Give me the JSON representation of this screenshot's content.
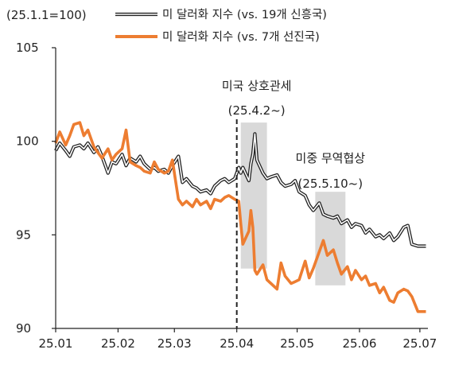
{
  "chart_data": {
    "type": "line",
    "ylabel": "(25.1.1=100)",
    "ylim": [
      90,
      105
    ],
    "y_ticks": [
      "90",
      "95",
      "100",
      "105"
    ],
    "xlim": [
      "2025-01-01",
      "2025-07-05"
    ],
    "x_tick_labels": [
      "25.01",
      "25.02",
      "25.03",
      "25.04",
      "25.05",
      "25.06",
      "25.07"
    ],
    "x_tick_dates": [
      "2025-01-01",
      "2025-02-01",
      "2025-03-01",
      "2025-04-01",
      "2025-05-01",
      "2025-06-01",
      "2025-07-01"
    ],
    "grid": false,
    "legend_position": "top-left",
    "series": [
      {
        "name": "미 달러화 지수 (vs. 19개 신흥국)",
        "style": "double",
        "color": "#222222",
        "x": [
          "2025-01-01",
          "2025-01-03",
          "2025-01-06",
          "2025-01-08",
          "2025-01-10",
          "2025-01-13",
          "2025-01-15",
          "2025-01-17",
          "2025-01-20",
          "2025-01-22",
          "2025-01-24",
          "2025-01-27",
          "2025-01-29",
          "2025-01-31",
          "2025-02-03",
          "2025-02-05",
          "2025-02-07",
          "2025-02-10",
          "2025-02-12",
          "2025-02-14",
          "2025-02-17",
          "2025-02-19",
          "2025-02-21",
          "2025-02-24",
          "2025-02-26",
          "2025-02-28",
          "2025-03-03",
          "2025-03-05",
          "2025-03-07",
          "2025-03-10",
          "2025-03-12",
          "2025-03-14",
          "2025-03-17",
          "2025-03-19",
          "2025-03-21",
          "2025-03-24",
          "2025-03-26",
          "2025-03-28",
          "2025-03-31",
          "2025-04-02",
          "2025-04-03",
          "2025-04-04",
          "2025-04-07",
          "2025-04-08",
          "2025-04-09",
          "2025-04-10",
          "2025-04-11",
          "2025-04-14",
          "2025-04-16",
          "2025-04-18",
          "2025-04-21",
          "2025-04-23",
          "2025-04-25",
          "2025-04-28",
          "2025-04-30",
          "2025-05-02",
          "2025-05-05",
          "2025-05-07",
          "2025-05-09",
          "2025-05-12",
          "2025-05-14",
          "2025-05-16",
          "2025-05-19",
          "2025-05-21",
          "2025-05-23",
          "2025-05-26",
          "2025-05-28",
          "2025-05-30",
          "2025-06-02",
          "2025-06-04",
          "2025-06-06",
          "2025-06-09",
          "2025-06-11",
          "2025-06-13",
          "2025-06-16",
          "2025-06-18",
          "2025-06-20",
          "2025-06-23",
          "2025-06-25",
          "2025-06-27",
          "2025-06-30",
          "2025-07-02",
          "2025-07-04"
        ],
        "values": [
          99.5,
          99.9,
          99.5,
          99.2,
          99.7,
          99.8,
          99.6,
          99.9,
          99.4,
          99.7,
          99.2,
          98.3,
          98.9,
          98.8,
          99.3,
          98.7,
          99.1,
          98.9,
          99.2,
          98.8,
          98.5,
          98.6,
          98.4,
          98.5,
          98.3,
          98.7,
          99.2,
          97.8,
          98.0,
          97.6,
          97.5,
          97.3,
          97.4,
          97.2,
          97.6,
          97.9,
          98.0,
          97.8,
          98.0,
          98.6,
          98.3,
          98.6,
          97.9,
          98.8,
          99.3,
          100.4,
          99.0,
          98.3,
          98.0,
          98.1,
          98.2,
          97.8,
          97.6,
          97.7,
          97.9,
          97.3,
          97.1,
          96.6,
          96.3,
          96.7,
          96.1,
          96.0,
          95.9,
          96.0,
          95.6,
          95.8,
          95.4,
          95.6,
          95.5,
          95.1,
          95.3,
          94.9,
          95.0,
          94.8,
          95.1,
          94.7,
          94.9,
          95.4,
          95.5,
          94.5,
          94.4,
          94.4,
          94.4
        ]
      },
      {
        "name": "미 달러화 지수 (vs. 7개 선진국)",
        "style": "solid",
        "color": "#ED7D31",
        "x": [
          "2025-01-01",
          "2025-01-03",
          "2025-01-06",
          "2025-01-08",
          "2025-01-10",
          "2025-01-13",
          "2025-01-15",
          "2025-01-17",
          "2025-01-20",
          "2025-01-22",
          "2025-01-24",
          "2025-01-27",
          "2025-01-29",
          "2025-01-31",
          "2025-02-03",
          "2025-02-05",
          "2025-02-07",
          "2025-02-10",
          "2025-02-12",
          "2025-02-14",
          "2025-02-17",
          "2025-02-19",
          "2025-02-21",
          "2025-02-24",
          "2025-02-26",
          "2025-02-28",
          "2025-03-03",
          "2025-03-05",
          "2025-03-07",
          "2025-03-10",
          "2025-03-12",
          "2025-03-14",
          "2025-03-17",
          "2025-03-19",
          "2025-03-21",
          "2025-03-24",
          "2025-03-26",
          "2025-03-28",
          "2025-03-31",
          "2025-04-02",
          "2025-04-03",
          "2025-04-04",
          "2025-04-07",
          "2025-04-08",
          "2025-04-09",
          "2025-04-10",
          "2025-04-11",
          "2025-04-14",
          "2025-04-16",
          "2025-04-18",
          "2025-04-21",
          "2025-04-23",
          "2025-04-25",
          "2025-04-28",
          "2025-04-30",
          "2025-05-02",
          "2025-05-05",
          "2025-05-07",
          "2025-05-09",
          "2025-05-12",
          "2025-05-14",
          "2025-05-16",
          "2025-05-19",
          "2025-05-21",
          "2025-05-23",
          "2025-05-26",
          "2025-05-28",
          "2025-05-30",
          "2025-06-02",
          "2025-06-04",
          "2025-06-06",
          "2025-06-09",
          "2025-06-11",
          "2025-06-13",
          "2025-06-16",
          "2025-06-18",
          "2025-06-20",
          "2025-06-23",
          "2025-06-25",
          "2025-06-27",
          "2025-06-30",
          "2025-07-02",
          "2025-07-04"
        ],
        "values": [
          99.9,
          100.5,
          99.8,
          100.3,
          100.9,
          101.0,
          100.3,
          100.6,
          99.7,
          99.4,
          99.1,
          99.6,
          99.0,
          99.3,
          99.6,
          100.6,
          98.9,
          98.7,
          98.6,
          98.4,
          98.3,
          98.9,
          98.5,
          98.3,
          98.4,
          99.0,
          96.9,
          96.6,
          96.8,
          96.5,
          96.9,
          96.6,
          96.8,
          96.4,
          96.9,
          96.8,
          97.0,
          97.1,
          96.9,
          96.8,
          95.6,
          94.5,
          95.2,
          96.3,
          95.4,
          93.1,
          92.9,
          93.4,
          92.6,
          92.4,
          92.1,
          93.5,
          92.8,
          92.4,
          92.5,
          92.6,
          93.6,
          92.7,
          93.2,
          94.1,
          94.7,
          93.9,
          94.2,
          93.5,
          92.9,
          93.3,
          92.6,
          93.1,
          92.6,
          92.8,
          92.3,
          92.4,
          91.9,
          92.2,
          91.5,
          91.4,
          91.9,
          92.1,
          92.0,
          91.7,
          90.9,
          90.9,
          90.9
        ]
      }
    ],
    "annotations": [
      {
        "title": "미국 상호관세",
        "date_label": "(25.4.2~)",
        "shade": [
          "2025-04-03",
          "2025-04-16"
        ],
        "vline": "2025-04-01"
      },
      {
        "title": "미중 무역협상",
        "date_label": "(25.5.10~)",
        "shade": [
          "2025-05-10",
          "2025-05-25"
        ]
      }
    ]
  }
}
